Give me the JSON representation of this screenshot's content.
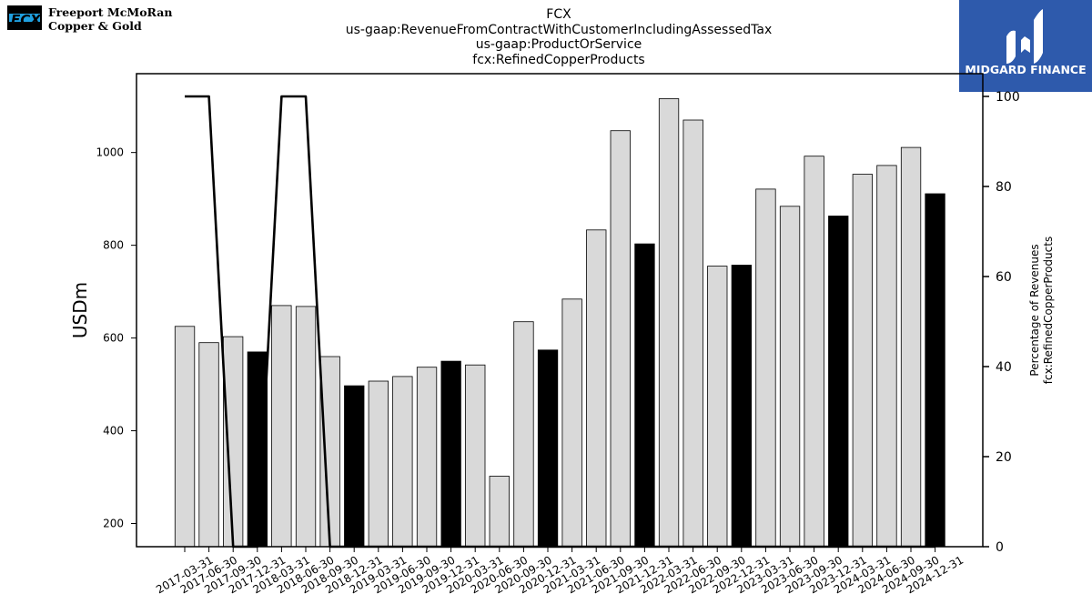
{
  "logo_left": {
    "line1": "Freeport McMoRan",
    "line2": "Copper & Gold"
  },
  "logo_right": {
    "text": "MIDGARD FINANCE"
  },
  "chart_data": {
    "type": "bar",
    "title_lines": [
      "FCX",
      "us-gaap:RevenueFromContractWithCustomerIncludingAssessedTax",
      "us-gaap:ProductOrService",
      "fcx:RefinedCopperProducts"
    ],
    "ylabel": "USDm",
    "y2label_lines": [
      "Percentage of Revenues",
      "fcx:RefinedCopperProducts"
    ],
    "ylim": [
      150,
      1170
    ],
    "y2lim": [
      0,
      100
    ],
    "yticks": [
      200,
      400,
      600,
      800,
      1000
    ],
    "y2ticks": [
      0,
      20,
      40,
      60,
      80,
      100
    ],
    "categories": [
      "2017-03-31",
      "2017-06-30",
      "2017-09-30",
      "2017-12-31",
      "2018-03-31",
      "2018-06-30",
      "2018-09-30",
      "2018-12-31",
      "2019-03-31",
      "2019-06-30",
      "2019-09-30",
      "2019-12-31",
      "2020-03-31",
      "2020-06-30",
      "2020-09-30",
      "2020-12-31",
      "2021-03-31",
      "2021-06-30",
      "2021-09-30",
      "2021-12-31",
      "2022-03-31",
      "2022-06-30",
      "2022-09-30",
      "2022-12-31",
      "2023-03-31",
      "2023-06-30",
      "2023-09-30",
      "2023-12-31",
      "2024-03-31",
      "2024-06-30",
      "2024-09-30",
      "2024-12-31"
    ],
    "values": [
      625,
      590,
      603,
      570,
      670,
      668,
      560,
      497,
      507,
      517,
      537,
      550,
      542,
      302,
      635,
      574,
      684,
      833,
      1047,
      803,
      1116,
      1070,
      755,
      757,
      921,
      884,
      992,
      863,
      953,
      972,
      1011,
      911
    ],
    "highlight": [
      false,
      false,
      false,
      true,
      false,
      false,
      false,
      true,
      false,
      false,
      false,
      true,
      false,
      false,
      false,
      true,
      false,
      false,
      false,
      true,
      false,
      false,
      false,
      true,
      false,
      false,
      false,
      true,
      false,
      false,
      false,
      true
    ],
    "bar_color": "#d9d9d9",
    "highlight_color": "#000000",
    "line_series": {
      "values": [
        100,
        100,
        0,
        0,
        100,
        100,
        0,
        0,
        0,
        0,
        0,
        0,
        0,
        0,
        0,
        0,
        0,
        0,
        0,
        0,
        0,
        0,
        0,
        0,
        0,
        0,
        0,
        0,
        0,
        0,
        0,
        0
      ],
      "color": "#000000"
    }
  }
}
